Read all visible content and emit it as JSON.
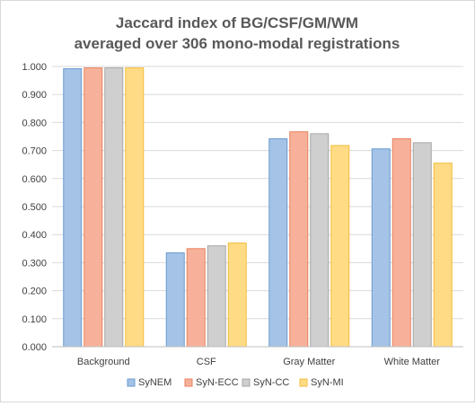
{
  "chart_data": {
    "type": "bar",
    "title": [
      "Jaccard index of BG/CSF/GM/WM",
      "averaged over 306 mono-modal  registrations"
    ],
    "xlabel": "",
    "ylabel": "",
    "ylim": [
      0,
      1.0
    ],
    "ytick_step": 0.1,
    "ytick_format": "0.000",
    "grid": true,
    "legend_position": "bottom",
    "categories": [
      "Background",
      "CSF",
      "Gray Matter",
      "White Matter"
    ],
    "series": [
      {
        "name": "SyNEM",
        "fill": "#a4c3e6",
        "stroke": "#6b9bd1",
        "values": [
          0.992,
          0.335,
          0.742,
          0.706
        ]
      },
      {
        "name": "SyN-ECC",
        "fill": "#f7b19a",
        "stroke": "#e8825f",
        "values": [
          0.995,
          0.35,
          0.767,
          0.742
        ]
      },
      {
        "name": "SyN-CC",
        "fill": "#cfcfcf",
        "stroke": "#a6a6a6",
        "values": [
          0.995,
          0.36,
          0.76,
          0.728
        ]
      },
      {
        "name": "SyN-MI",
        "fill": "#ffdb85",
        "stroke": "#f2bd3d",
        "values": [
          0.995,
          0.37,
          0.718,
          0.655
        ]
      }
    ]
  }
}
